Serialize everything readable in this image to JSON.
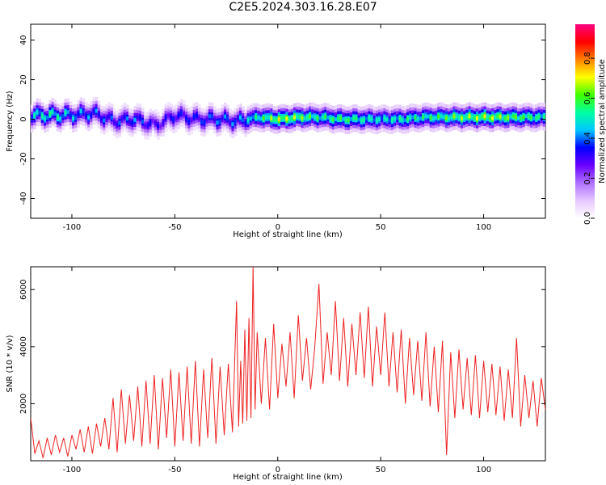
{
  "title": "C2E5.2024.303.16.28.E07",
  "chart_data": [
    {
      "type": "heatmap",
      "xlabel": "Height of straight line (km)",
      "ylabel": "Frequency (Hz)",
      "xlim": [
        -120,
        130
      ],
      "ylim": [
        -50,
        48
      ],
      "xticks": [
        -100,
        -50,
        0,
        50,
        100
      ],
      "yticks": [
        -40,
        -20,
        0,
        20,
        40
      ],
      "colorbar": {
        "label": "Normalized spectral amplitude",
        "range": [
          0,
          0.97
        ],
        "ticks": [
          0.0,
          0.2,
          0.4,
          0.6,
          0.8
        ],
        "tick_labels": [
          "0.0",
          "0.2",
          "0.4",
          "0.6",
          "0.8"
        ],
        "colors": [
          "#ffffff",
          "#e6c8ff",
          "#b070ff",
          "#6a00ff",
          "#0000ff",
          "#00c8ff",
          "#00ffa0",
          "#40ff00",
          "#ffff00",
          "#ff8000",
          "#ff0000",
          "#ff0080"
        ]
      },
      "band": [
        {
          "x": -120,
          "f": 2,
          "a": 0.55
        },
        {
          "x": -110,
          "f": 2,
          "a": 0.6
        },
        {
          "x": -100,
          "f": 2,
          "a": 0.5
        },
        {
          "x": -90,
          "f": 3,
          "a": 0.45
        },
        {
          "x": -80,
          "f": -1,
          "a": 0.4
        },
        {
          "x": -70,
          "f": 0,
          "a": 0.45
        },
        {
          "x": -60,
          "f": -3,
          "a": 0.35
        },
        {
          "x": -50,
          "f": 2,
          "a": 0.4
        },
        {
          "x": -40,
          "f": 0,
          "a": 0.4
        },
        {
          "x": -30,
          "f": 0,
          "a": 0.45
        },
        {
          "x": -20,
          "f": -1,
          "a": 0.45
        },
        {
          "x": -10,
          "f": 1,
          "a": 0.6
        },
        {
          "x": 0,
          "f": 0,
          "a": 0.75
        },
        {
          "x": 10,
          "f": 1,
          "a": 0.7
        },
        {
          "x": 20,
          "f": 1,
          "a": 0.6
        },
        {
          "x": 30,
          "f": 0,
          "a": 0.65
        },
        {
          "x": 40,
          "f": 0,
          "a": 0.6
        },
        {
          "x": 50,
          "f": 0,
          "a": 0.55
        },
        {
          "x": 60,
          "f": 0,
          "a": 0.6
        },
        {
          "x": 70,
          "f": 1,
          "a": 0.6
        },
        {
          "x": 80,
          "f": 1,
          "a": 0.65
        },
        {
          "x": 90,
          "f": 1,
          "a": 0.7
        },
        {
          "x": 100,
          "f": 1,
          "a": 0.75
        },
        {
          "x": 110,
          "f": 1,
          "a": 0.7
        },
        {
          "x": 120,
          "f": 1,
          "a": 0.65
        },
        {
          "x": 130,
          "f": 1,
          "a": 0.6
        }
      ]
    },
    {
      "type": "line",
      "xlabel": "Height of straight line (km)",
      "ylabel": "SNR (10 * v/v)",
      "xlim": [
        -120,
        130
      ],
      "ylim": [
        0,
        6800
      ],
      "xticks": [
        -100,
        -50,
        0,
        50,
        100
      ],
      "yticks": [
        2000,
        4000,
        6000
      ],
      "color": "#ee2222",
      "x": [
        -120,
        -118,
        -116,
        -114,
        -112,
        -110,
        -108,
        -106,
        -104,
        -102,
        -100,
        -98,
        -96,
        -94,
        -92,
        -90,
        -88,
        -86,
        -84,
        -82,
        -80,
        -78,
        -76,
        -74,
        -72,
        -70,
        -68,
        -66,
        -64,
        -62,
        -60,
        -58,
        -56,
        -54,
        -52,
        -50,
        -48,
        -46,
        -44,
        -42,
        -40,
        -38,
        -36,
        -34,
        -32,
        -30,
        -28,
        -26,
        -24,
        -22,
        -20,
        -19,
        -18,
        -17,
        -16,
        -15,
        -14,
        -13,
        -12,
        -11,
        -10,
        -8,
        -6,
        -4,
        -2,
        0,
        2,
        4,
        6,
        8,
        10,
        12,
        14,
        16,
        18,
        20,
        22,
        24,
        26,
        28,
        30,
        32,
        34,
        36,
        38,
        40,
        42,
        44,
        46,
        48,
        50,
        52,
        54,
        56,
        58,
        60,
        62,
        64,
        66,
        68,
        70,
        72,
        74,
        76,
        78,
        80,
        82,
        84,
        86,
        88,
        90,
        92,
        94,
        96,
        98,
        100,
        102,
        104,
        106,
        108,
        110,
        112,
        114,
        116,
        118,
        120,
        122,
        124,
        126,
        128,
        130
      ],
      "y": [
        1500,
        250,
        700,
        100,
        800,
        200,
        900,
        300,
        800,
        150,
        900,
        400,
        1100,
        300,
        1200,
        250,
        1300,
        500,
        1500,
        400,
        2200,
        300,
        2500,
        600,
        2300,
        700,
        2600,
        500,
        2800,
        600,
        3000,
        400,
        2900,
        800,
        3200,
        500,
        3100,
        700,
        3300,
        600,
        3500,
        500,
        3200,
        800,
        3600,
        600,
        3300,
        900,
        3400,
        1000,
        5600,
        1200,
        3500,
        1300,
        4600,
        1400,
        5000,
        1500,
        6800,
        1800,
        4500,
        2000,
        4300,
        1800,
        4800,
        2200,
        4100,
        2600,
        4500,
        2200,
        5100,
        2800,
        4300,
        2500,
        4000,
        6200,
        2700,
        4500,
        3000,
        5600,
        2800,
        5000,
        2600,
        4800,
        3000,
        5200,
        2900,
        5400,
        2600,
        4700,
        3000,
        5200,
        2600,
        4500,
        2400,
        4600,
        2000,
        4300,
        2300,
        4200,
        2100,
        4500,
        1900,
        4000,
        1700,
        4200,
        200,
        3800,
        1500,
        3900,
        1800,
        3600,
        1600,
        3700,
        1500,
        3500,
        1700,
        3400,
        1600,
        3300,
        1400,
        3200,
        1500,
        4300,
        1200,
        3000,
        1500,
        2800,
        1200,
        2900,
        1800
      ]
    }
  ]
}
